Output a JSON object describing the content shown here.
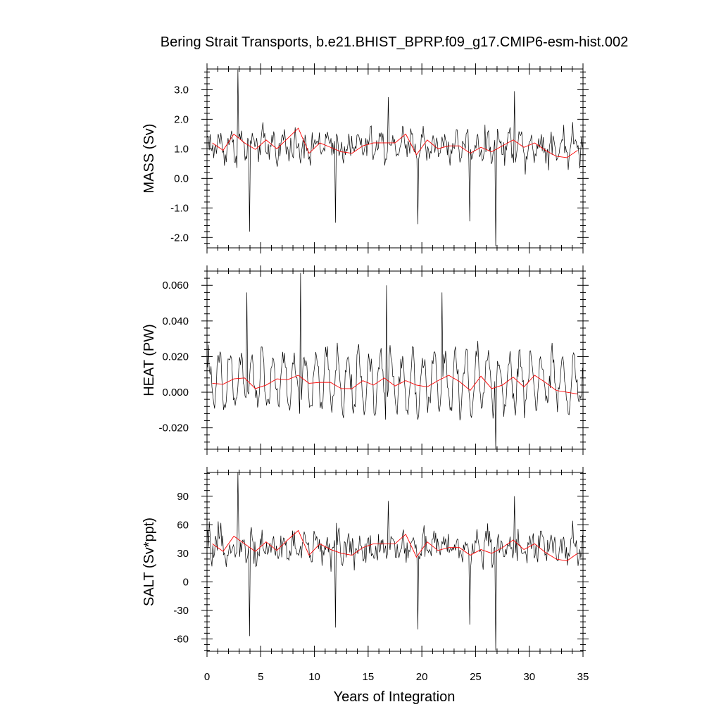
{
  "chart_data": {
    "type": "line",
    "title": "Bering Strait Transports, b.e21.BHIST_BPRP.f09_g17.CMIP6-esm-hist.002",
    "xlabel": "Years of Integration",
    "xlim": [
      0,
      35
    ],
    "x_ticks": [
      0,
      5,
      10,
      15,
      20,
      25,
      30,
      35
    ],
    "x_tick_labels": [
      "0",
      "5",
      "10",
      "15",
      "20",
      "25",
      "30",
      "35"
    ],
    "grid": false,
    "monthly_points": 420,
    "colors": {
      "monthly": "#000000",
      "annual": "#ff0000"
    },
    "panels": [
      {
        "id": "mass",
        "ylabel": "MASS (Sv)",
        "ylim": [
          -2.35,
          3.7
        ],
        "y_ticks": [
          -2.0,
          -1.0,
          0.0,
          1.0,
          2.0,
          3.0
        ],
        "y_tick_labels": [
          "-2.0",
          "-1.0",
          "0.0",
          "1.0",
          "2.0",
          "3.0"
        ],
        "monthly_base": 1.1,
        "monthly_amp": 0.75,
        "monthly_seasonal": 0.3,
        "spikes": [
          [
            2.8,
            3.68
          ],
          [
            3.9,
            -1.8
          ],
          [
            11.9,
            -1.5
          ],
          [
            16.8,
            2.75
          ],
          [
            19.6,
            -1.55
          ],
          [
            24.4,
            -1.45
          ],
          [
            26.8,
            -2.3
          ],
          [
            28.6,
            2.95
          ]
        ],
        "annual_x": [
          0.5,
          1.5,
          2.5,
          3.5,
          4.5,
          5.5,
          6.5,
          7.5,
          8.5,
          9.5,
          10.5,
          11.5,
          12.5,
          13.5,
          14.5,
          15.5,
          16.5,
          17.5,
          18.5,
          19.5,
          20.5,
          21.5,
          22.5,
          23.5,
          24.5,
          25.5,
          26.5,
          27.5,
          28.5,
          29.5,
          30.5,
          31.5,
          32.5,
          33.5,
          34.5
        ],
        "annual_y": [
          1.2,
          0.95,
          1.5,
          1.2,
          0.98,
          1.3,
          1.0,
          1.35,
          1.7,
          0.85,
          1.2,
          1.05,
          0.9,
          0.85,
          1.1,
          1.2,
          1.2,
          1.2,
          1.5,
          0.8,
          1.3,
          1.0,
          1.1,
          1.1,
          0.85,
          1.05,
          0.9,
          1.1,
          1.3,
          1.05,
          1.2,
          0.95,
          0.75,
          0.7,
          0.95
        ]
      },
      {
        "id": "heat",
        "ylabel": "HEAT (PW)",
        "ylim": [
          -0.032,
          0.068
        ],
        "y_ticks": [
          -0.02,
          0.0,
          0.02,
          0.04,
          0.06
        ],
        "y_tick_labels": [
          "-0.020",
          "0.000",
          "0.020",
          "0.040",
          "0.060"
        ],
        "monthly_base": 0.006,
        "monthly_amp": 0.012,
        "monthly_seasonal": 0.015,
        "spikes": [
          [
            3.7,
            0.056
          ],
          [
            8.7,
            0.067
          ],
          [
            16.7,
            0.06
          ],
          [
            26.8,
            -0.032
          ],
          [
            21.8,
            0.056
          ]
        ],
        "annual_x": [
          0.5,
          1.5,
          2.5,
          3.5,
          4.5,
          5.5,
          6.5,
          7.5,
          8.5,
          9.5,
          10.5,
          11.5,
          12.5,
          13.5,
          14.5,
          15.5,
          16.5,
          17.5,
          18.5,
          19.5,
          20.5,
          21.5,
          22.5,
          23.5,
          24.5,
          25.5,
          26.5,
          27.5,
          28.5,
          29.5,
          30.5,
          31.5,
          32.5,
          33.5,
          34.5
        ],
        "annual_y": [
          0.005,
          0.0045,
          0.0075,
          0.008,
          0.002,
          0.004,
          0.0075,
          0.007,
          0.0095,
          0.005,
          0.0055,
          0.0055,
          0.002,
          0.002,
          0.0065,
          0.004,
          0.008,
          0.0035,
          0.0065,
          0.004,
          0.003,
          0.0065,
          0.0095,
          0.006,
          0.001,
          0.009,
          0.002,
          0.004,
          0.0085,
          0.003,
          0.0095,
          0.0055,
          0.001,
          0.0,
          -0.001
        ]
      },
      {
        "id": "salt",
        "ylabel": "SALT (Sv*ppt)",
        "ylim": [
          -73,
          115
        ],
        "y_ticks": [
          -60,
          -30,
          0,
          30,
          60,
          90
        ],
        "y_tick_labels": [
          "-60",
          "-30",
          "0",
          "30",
          "60",
          "90"
        ],
        "monthly_base": 36,
        "monthly_amp": 24,
        "monthly_seasonal": 9,
        "spikes": [
          [
            2.8,
            115
          ],
          [
            3.9,
            -57
          ],
          [
            11.9,
            -48
          ],
          [
            16.8,
            85
          ],
          [
            19.6,
            -50
          ],
          [
            24.4,
            -45
          ],
          [
            26.8,
            -72
          ],
          [
            28.6,
            90
          ]
        ],
        "annual_x": [
          0.5,
          1.5,
          2.5,
          3.5,
          4.5,
          5.5,
          6.5,
          7.5,
          8.5,
          9.5,
          10.5,
          11.5,
          12.5,
          13.5,
          14.5,
          15.5,
          16.5,
          17.5,
          18.5,
          19.5,
          20.5,
          21.5,
          22.5,
          23.5,
          24.5,
          25.5,
          26.5,
          27.5,
          28.5,
          29.5,
          30.5,
          31.5,
          32.5,
          33.5,
          34.5
        ],
        "annual_y": [
          40,
          32,
          48,
          40,
          32,
          42,
          33,
          44,
          54,
          28,
          40,
          34,
          30,
          28,
          36,
          40,
          40,
          40,
          50,
          26,
          42,
          33,
          36,
          36,
          28,
          34,
          30,
          36,
          44,
          34,
          40,
          31,
          24,
          22,
          30
        ]
      }
    ]
  }
}
